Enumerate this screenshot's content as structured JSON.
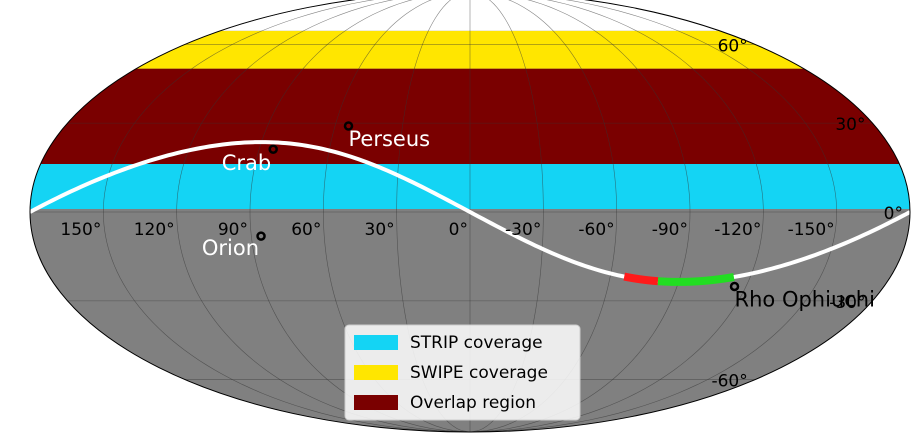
{
  "map": {
    "projection": "mollweide",
    "lon_ticks": [
      {
        "value": 150,
        "label": "150°"
      },
      {
        "value": 120,
        "label": "120°"
      },
      {
        "value": 90,
        "label": "90°"
      },
      {
        "value": 60,
        "label": "60°"
      },
      {
        "value": 30,
        "label": "30°"
      },
      {
        "value": 0,
        "label": "0°"
      },
      {
        "value": -30,
        "label": "-30°"
      },
      {
        "value": -60,
        "label": "-60°"
      },
      {
        "value": -90,
        "label": "-90°"
      },
      {
        "value": -120,
        "label": "-120°"
      },
      {
        "value": -150,
        "label": "-150°"
      }
    ],
    "lat_ticks": [
      {
        "value": 60,
        "label": "60°"
      },
      {
        "value": 30,
        "label": "30°"
      },
      {
        "value": 0,
        "label": "0°"
      },
      {
        "value": -30,
        "label": "-30°"
      },
      {
        "value": -60,
        "label": "-60°"
      }
    ],
    "background_color": "#808080",
    "bands": [
      {
        "name": "STRIP coverage",
        "color": "#14d4f4",
        "lat": [
          1,
          16
        ]
      },
      {
        "name": "SWIPE coverage",
        "color": "#ffe600",
        "lat": [
          50,
          66
        ]
      },
      {
        "name": "Overlap region",
        "color": "#7a0000",
        "lat": [
          16,
          50
        ]
      }
    ],
    "ecliptic_obliquity": 23.44,
    "ecliptic_segments": [
      {
        "color": "#ff1a1a",
        "lon": [
          -81,
          -66
        ]
      },
      {
        "color": "#22dd22",
        "lon": [
          -113,
          -81
        ]
      }
    ],
    "sources": [
      {
        "name": "Perseus",
        "lon": 54,
        "lat": 29,
        "label_color": "#ffffff"
      },
      {
        "name": "Crab",
        "lon": 84,
        "lat": 21,
        "label_color": "#ffffff"
      },
      {
        "name": "Orion",
        "lon": 86,
        "lat": -8,
        "label_color": "#ffffff"
      },
      {
        "name": "Rho Ophiuchi",
        "lon": -115,
        "lat": -25,
        "label_color": "#000000"
      }
    ]
  }
}
